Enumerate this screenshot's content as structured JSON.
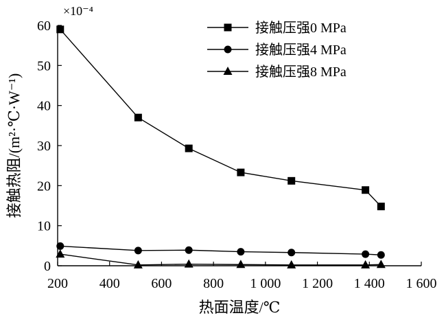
{
  "chart_data": {
    "type": "line",
    "xlabel": "热面温度/℃",
    "ylabel": "接触热阻/(m²·℃·W⁻¹)",
    "y_multiplier": "×10⁻⁴",
    "xlim": [
      200,
      1600
    ],
    "ylim": [
      0,
      60
    ],
    "x_ticks": [
      200,
      400,
      600,
      800,
      1000,
      1200,
      1400,
      1600
    ],
    "x_tick_labels": [
      "200",
      "400",
      "600",
      "800",
      "1 000",
      "1 200",
      "1 400",
      "1 600"
    ],
    "y_ticks": [
      0,
      10,
      20,
      30,
      40,
      50,
      60
    ],
    "y_tick_labels": [
      "0",
      "10",
      "20",
      "30",
      "40",
      "50",
      "60"
    ],
    "grid": false,
    "legend_position": "top-right",
    "series": [
      {
        "name": "接触压强0 MPa",
        "marker": "square",
        "x": [
          210,
          510,
          705,
          905,
          1100,
          1385,
          1445
        ],
        "y": [
          59.0,
          37.0,
          29.3,
          23.3,
          21.2,
          18.9,
          14.8
        ]
      },
      {
        "name": "接触压强4 MPa",
        "marker": "circle",
        "x": [
          210,
          510,
          705,
          905,
          1100,
          1385,
          1445
        ],
        "y": [
          4.9,
          3.8,
          3.9,
          3.5,
          3.3,
          2.9,
          2.7
        ]
      },
      {
        "name": "接触压强8 MPa",
        "marker": "triangle",
        "x": [
          210,
          510,
          705,
          905,
          1100,
          1385,
          1445
        ],
        "y": [
          2.9,
          0.2,
          0.4,
          0.3,
          0.2,
          0.2,
          0.3
        ]
      }
    ]
  }
}
